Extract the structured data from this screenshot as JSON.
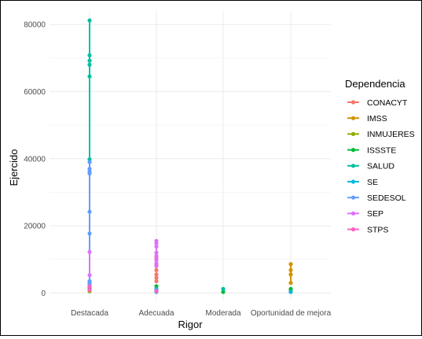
{
  "chart_data": {
    "type": "scatter",
    "xlabel": "Rigor",
    "ylabel": "Ejercido",
    "categories": [
      "Destacada",
      "Adecuada",
      "Moderada",
      "Oportunidad de mejora"
    ],
    "ylim": [
      -2000,
      84000
    ],
    "yticks": [
      0,
      20000,
      40000,
      60000,
      80000
    ],
    "ytick_labels": [
      "0",
      "20000",
      "40000",
      "60000",
      "80000"
    ],
    "grid": true,
    "legend_title": "Dependencia",
    "legend_position": "right",
    "series": [
      {
        "name": "CONACYT",
        "color": "#F8766D",
        "points": [
          {
            "x": "Adecuada",
            "y": 3500
          },
          {
            "x": "Adecuada",
            "y": 4500
          },
          {
            "x": "Adecuada",
            "y": 5500
          },
          {
            "x": "Adecuada",
            "y": 6800
          },
          {
            "x": "Adecuada",
            "y": 8500
          },
          {
            "x": "Adecuada",
            "y": 10500
          }
        ]
      },
      {
        "name": "IMSS",
        "color": "#D39200",
        "points": [
          {
            "x": "Oportunidad de mejora",
            "y": 3000
          },
          {
            "x": "Oportunidad de mejora",
            "y": 5500
          },
          {
            "x": "Oportunidad de mejora",
            "y": 6800
          },
          {
            "x": "Oportunidad de mejora",
            "y": 8600
          },
          {
            "x": "Adecuada",
            "y": 800
          }
        ]
      },
      {
        "name": "INMUJERES",
        "color": "#93AA00",
        "points": [
          {
            "x": "Destacada",
            "y": 500
          },
          {
            "x": "Oportunidad de mejora",
            "y": 600
          }
        ]
      },
      {
        "name": "ISSSTE",
        "color": "#00BA38",
        "points": [
          {
            "x": "Destacada",
            "y": 1500
          },
          {
            "x": "Adecuada",
            "y": 2000
          },
          {
            "x": "Moderada",
            "y": 300
          },
          {
            "x": "Oportunidad de mejora",
            "y": 1200
          }
        ]
      },
      {
        "name": "SALUD",
        "color": "#00C19F",
        "points": [
          {
            "x": "Destacada",
            "y": 81200
          },
          {
            "x": "Destacada",
            "y": 70800
          },
          {
            "x": "Destacada",
            "y": 69200
          },
          {
            "x": "Destacada",
            "y": 68000
          },
          {
            "x": "Destacada",
            "y": 64500
          },
          {
            "x": "Destacada",
            "y": 39800
          },
          {
            "x": "Adecuada",
            "y": 1200
          },
          {
            "x": "Moderada",
            "y": 1200
          }
        ]
      },
      {
        "name": "SE",
        "color": "#00B9E3",
        "points": [
          {
            "x": "Destacada",
            "y": 2500
          },
          {
            "x": "Adecuada",
            "y": 300
          },
          {
            "x": "Oportunidad de mejora",
            "y": 300
          }
        ]
      },
      {
        "name": "SEDESOL",
        "color": "#619CFF",
        "points": [
          {
            "x": "Destacada",
            "y": 39000
          },
          {
            "x": "Destacada",
            "y": 37000
          },
          {
            "x": "Destacada",
            "y": 36200
          },
          {
            "x": "Destacada",
            "y": 35600
          },
          {
            "x": "Destacada",
            "y": 24200
          },
          {
            "x": "Destacada",
            "y": 17700
          },
          {
            "x": "Destacada",
            "y": 3500
          },
          {
            "x": "Destacada",
            "y": 3000
          },
          {
            "x": "Adecuada",
            "y": 1000
          }
        ]
      },
      {
        "name": "SEP",
        "color": "#DB72FB",
        "points": [
          {
            "x": "Destacada",
            "y": 12200
          },
          {
            "x": "Destacada",
            "y": 5300
          },
          {
            "x": "Adecuada",
            "y": 15500
          },
          {
            "x": "Adecuada",
            "y": 14800
          },
          {
            "x": "Adecuada",
            "y": 13800
          },
          {
            "x": "Adecuada",
            "y": 12000
          },
          {
            "x": "Adecuada",
            "y": 11000
          },
          {
            "x": "Adecuada",
            "y": 9800
          },
          {
            "x": "Adecuada",
            "y": 8800
          },
          {
            "x": "Adecuada",
            "y": 8000
          }
        ]
      },
      {
        "name": "STPS",
        "color": "#FF61C3",
        "points": [
          {
            "x": "Destacada",
            "y": 2000
          },
          {
            "x": "Destacada",
            "y": 900
          },
          {
            "x": "Adecuada",
            "y": 500
          }
        ]
      }
    ]
  }
}
